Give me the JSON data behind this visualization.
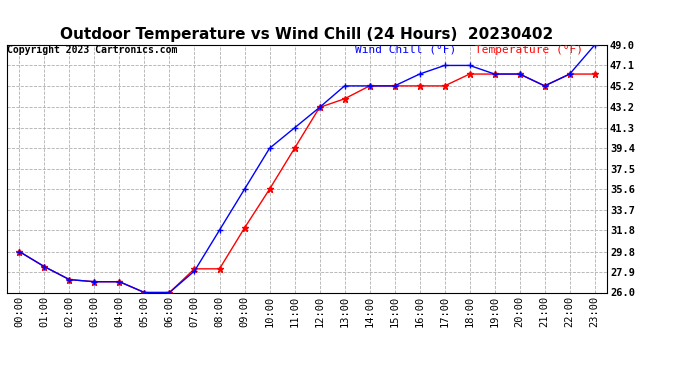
{
  "title": "Outdoor Temperature vs Wind Chill (24 Hours)  20230402",
  "copyright": "Copyright 2023 Cartronics.com",
  "legend_wind_chill": "Wind Chill (°F)",
  "legend_temperature": "Temperature (°F)",
  "x_labels": [
    "00:00",
    "01:00",
    "02:00",
    "03:00",
    "04:00",
    "05:00",
    "06:00",
    "07:00",
    "08:00",
    "09:00",
    "10:00",
    "11:00",
    "12:00",
    "13:00",
    "14:00",
    "15:00",
    "16:00",
    "17:00",
    "18:00",
    "19:00",
    "20:00",
    "21:00",
    "22:00",
    "23:00"
  ],
  "temperature": [
    29.8,
    28.4,
    27.2,
    27.0,
    27.0,
    26.0,
    26.0,
    28.2,
    28.2,
    32.0,
    35.6,
    39.4,
    43.2,
    44.0,
    45.2,
    45.2,
    45.2,
    45.2,
    46.3,
    46.3,
    46.3,
    45.2,
    46.3,
    46.3
  ],
  "wind_chill": [
    29.8,
    28.4,
    27.2,
    27.0,
    27.0,
    26.0,
    26.0,
    28.0,
    31.8,
    35.6,
    39.4,
    41.3,
    43.2,
    45.2,
    45.2,
    45.2,
    46.3,
    47.1,
    47.1,
    46.3,
    46.3,
    45.2,
    46.3,
    49.0
  ],
  "ylim_min": 26.0,
  "ylim_max": 49.0,
  "yticks": [
    26.0,
    27.9,
    29.8,
    31.8,
    33.7,
    35.6,
    37.5,
    39.4,
    41.3,
    43.2,
    45.2,
    47.1,
    49.0
  ],
  "temp_color": "#ff0000",
  "wind_chill_color": "#0000ff",
  "bg_color": "#ffffff",
  "grid_color": "#b0b0b0",
  "title_color": "#000000",
  "copyright_color": "#000000",
  "legend_wind_chill_color": "#0000ff",
  "legend_temperature_color": "#ff0000",
  "title_fontsize": 11,
  "copyright_fontsize": 7,
  "legend_fontsize": 8,
  "tick_fontsize": 7.5
}
